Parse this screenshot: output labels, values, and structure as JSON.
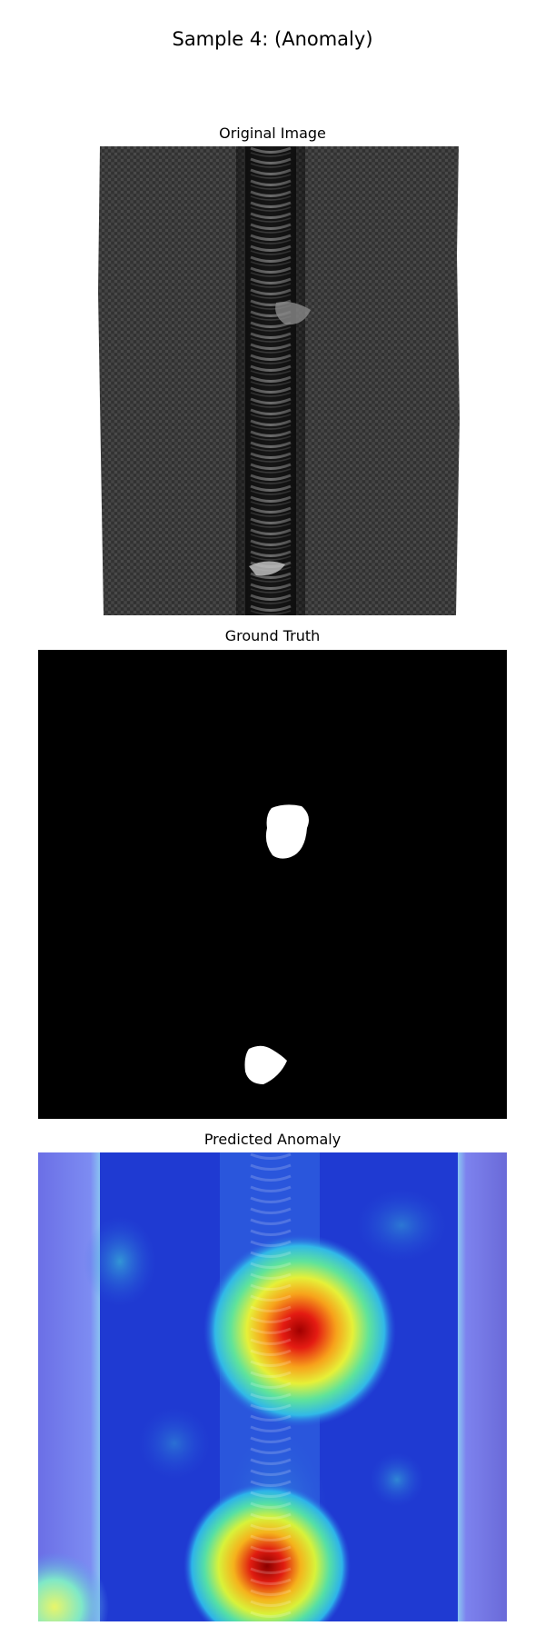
{
  "figure": {
    "title": "Sample 4: (Anomaly)"
  },
  "panels": [
    {
      "title": "Original Image",
      "content": "grayscale zipper with defects"
    },
    {
      "title": "Ground Truth",
      "content": "binary anomaly mask"
    },
    {
      "title": "Predicted Anomaly",
      "content": "jet heatmap overlay"
    }
  ],
  "colors": {
    "background": "#ffffff",
    "mask_background": "#000000",
    "mask_foreground": "#ffffff",
    "heatmap_low": "#1f3bd0",
    "heatmap_high": "#c81010"
  }
}
